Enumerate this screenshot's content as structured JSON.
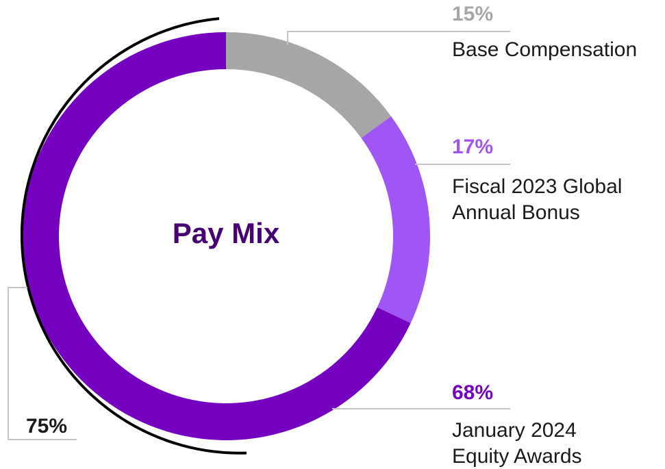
{
  "chart_data": {
    "type": "pie",
    "title": "Pay Mix",
    "slices": [
      {
        "label_lines": [
          "Base Compensation"
        ],
        "value": 15,
        "value_label": "15%",
        "color": "#a6a6a6",
        "label_color": "#a6a6a6"
      },
      {
        "label_lines": [
          "Fiscal 2023 Global",
          "Annual Bonus"
        ],
        "value": 17,
        "value_label": "17%",
        "color": "#a055f5",
        "label_color": "#a055f5"
      },
      {
        "label_lines": [
          "January 2024",
          "Equity Awards"
        ],
        "value": 68,
        "value_label": "68%",
        "color": "#7500c0",
        "label_color": "#7500c0"
      }
    ],
    "bracket": {
      "value": 75,
      "label": "75%",
      "color": "#000000"
    },
    "center_color": "#460073"
  }
}
